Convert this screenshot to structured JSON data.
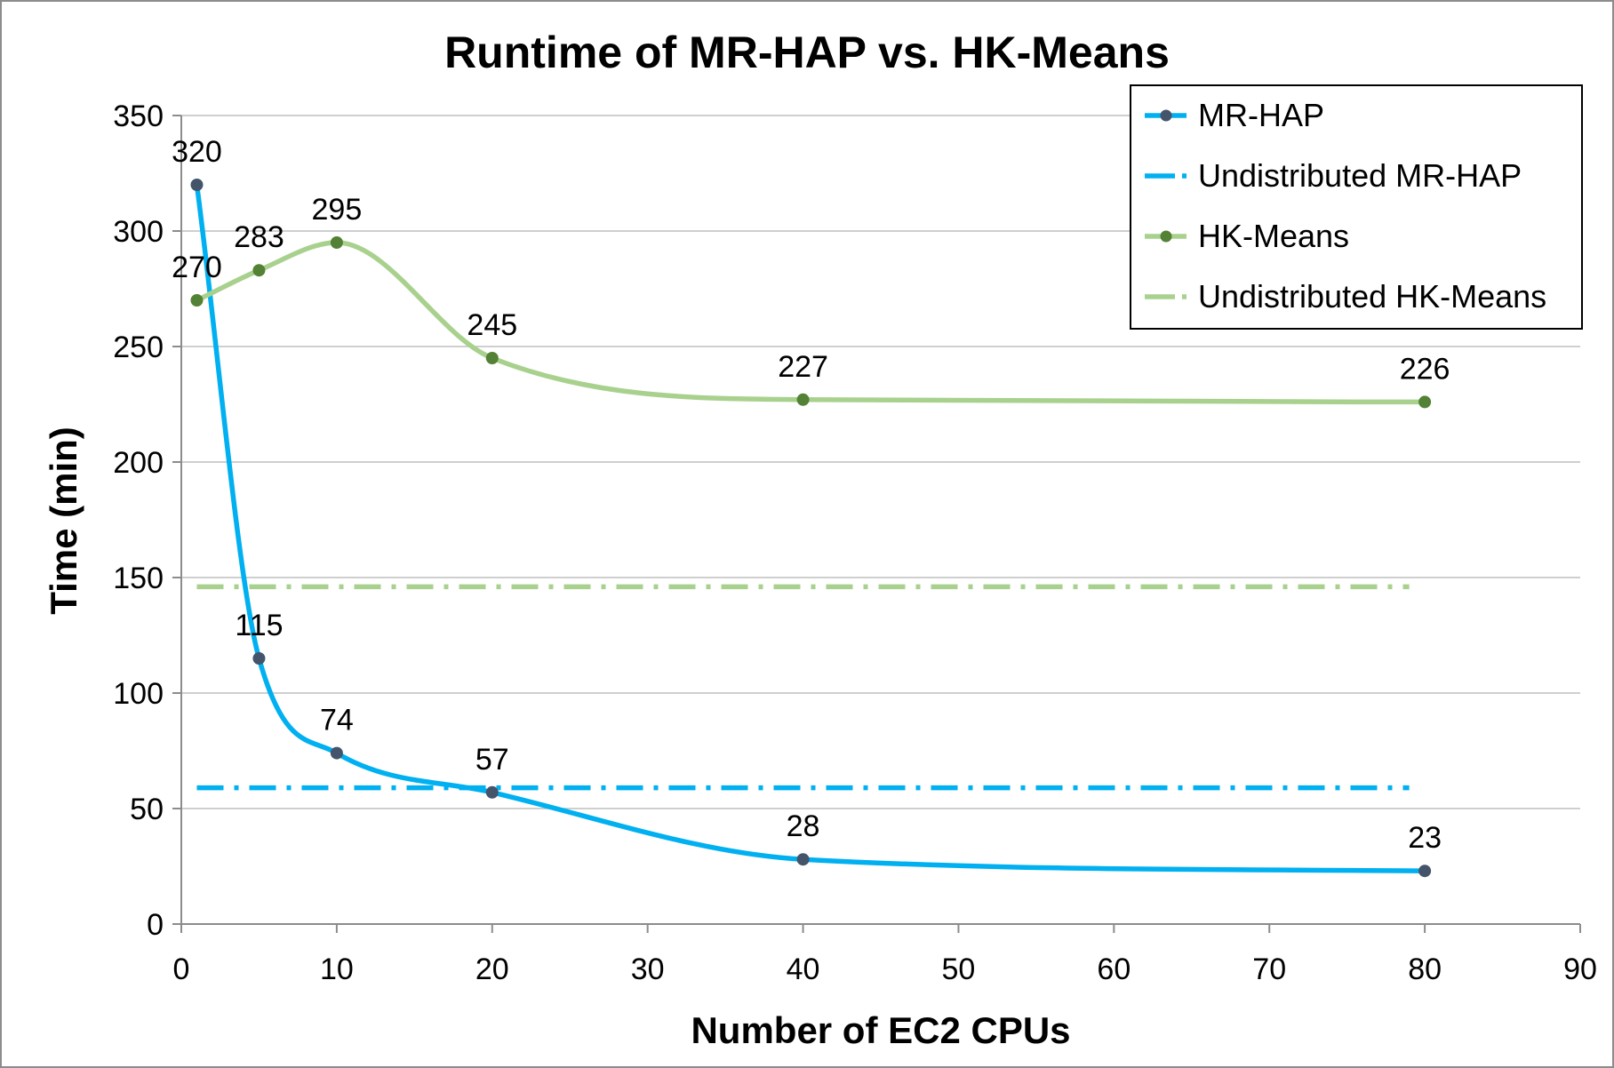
{
  "chart_data": {
    "type": "line",
    "title": "Runtime of MR-HAP vs. HK-Means",
    "xlabel": "Number of EC2 CPUs",
    "ylabel": "Time (min)",
    "xlim": [
      0,
      90
    ],
    "ylim": [
      0,
      350
    ],
    "xticks": [
      0,
      10,
      20,
      30,
      40,
      50,
      60,
      70,
      80,
      90
    ],
    "yticks": [
      0,
      50,
      100,
      150,
      200,
      250,
      300,
      350
    ],
    "grid": "horizontal",
    "legend_position": "top-right",
    "series": [
      {
        "name": "MR-HAP",
        "style": "solid-smooth-markers",
        "color": "#00b0f0",
        "marker_color": "#44546a",
        "x": [
          1,
          5,
          10,
          20,
          40,
          80
        ],
        "values": [
          320,
          115,
          74,
          57,
          28,
          23
        ],
        "labels": [
          "320",
          "115",
          "74",
          "57",
          "28",
          "23"
        ]
      },
      {
        "name": "Undistributed MR-HAP",
        "style": "dash-dot",
        "color": "#00b0f0",
        "x": [
          1,
          79
        ],
        "values": [
          59,
          59
        ]
      },
      {
        "name": "HK-Means",
        "style": "solid-smooth-markers",
        "color": "#a9d18e",
        "marker_color": "#538135",
        "x": [
          1,
          5,
          10,
          20,
          40,
          80
        ],
        "values": [
          270,
          283,
          295,
          245,
          227,
          226
        ],
        "labels": [
          "270",
          "283",
          "295",
          "245",
          "227",
          "226"
        ]
      },
      {
        "name": "Undistributed HK-Means",
        "style": "dash-dot",
        "color": "#a9d18e",
        "x": [
          1,
          79
        ],
        "values": [
          146,
          146
        ]
      }
    ]
  }
}
